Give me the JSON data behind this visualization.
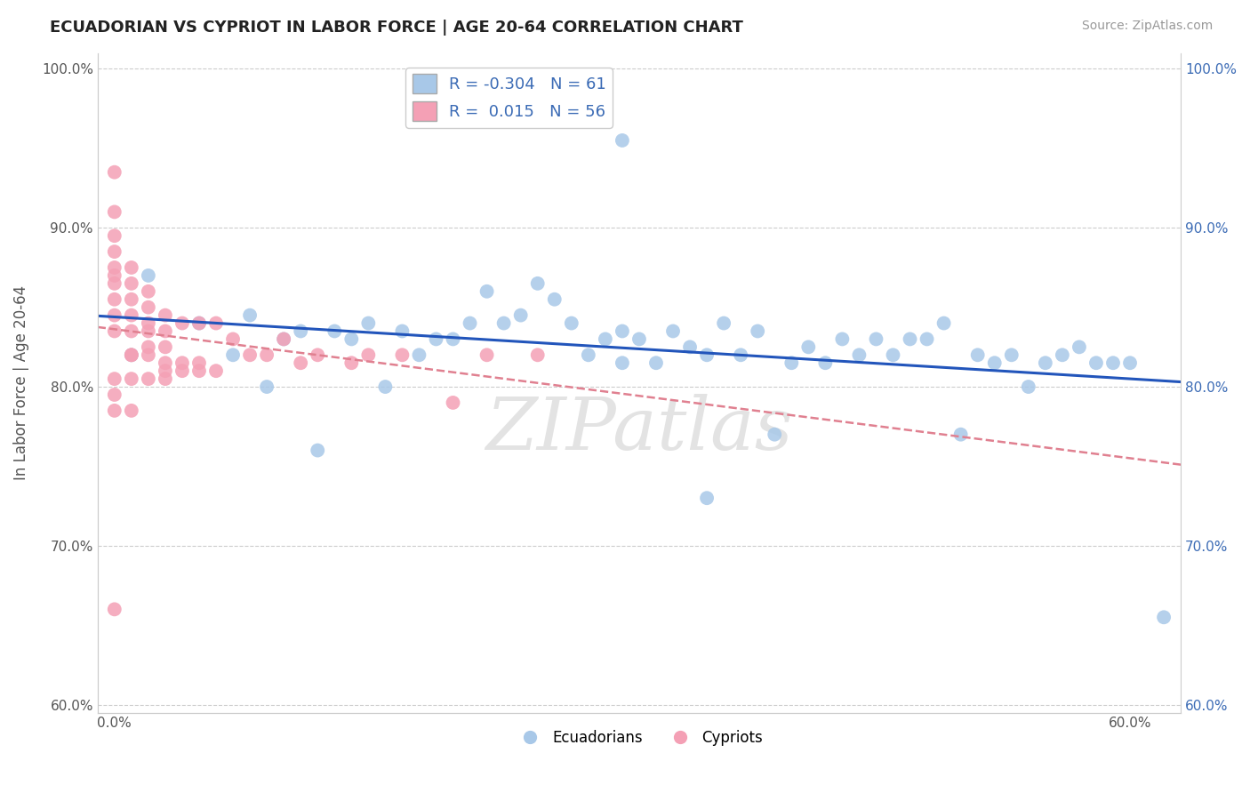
{
  "title": "ECUADORIAN VS CYPRIOT IN LABOR FORCE | AGE 20-64 CORRELATION CHART",
  "source": "Source: ZipAtlas.com",
  "ylabel": "In Labor Force | Age 20-64",
  "xlim": [
    -0.01,
    0.63
  ],
  "ylim": [
    0.595,
    1.01
  ],
  "xticks": [
    0.0,
    0.1,
    0.2,
    0.3,
    0.4,
    0.5,
    0.6
  ],
  "xticklabels": [
    "0.0%",
    "",
    "",
    "",
    "",
    "",
    "60.0%"
  ],
  "yticks": [
    0.6,
    0.7,
    0.8,
    0.9,
    1.0
  ],
  "yticklabels_left": [
    "60.0%",
    "70.0%",
    "80.0%",
    "90.0%",
    "100.0%"
  ],
  "yticklabels_right": [
    "60.0%",
    "70.0%",
    "80.0%",
    "90.0%",
    "100.0%"
  ],
  "R_blue": -0.304,
  "N_blue": 61,
  "R_pink": 0.015,
  "N_pink": 56,
  "blue_color": "#a8c8e8",
  "pink_color": "#f4a0b5",
  "blue_line_color": "#2255bb",
  "pink_line_color": "#e08090",
  "background_color": "#ffffff",
  "grid_color": "#cccccc",
  "watermark": "ZIPatlas",
  "blue_scatter_x": [
    0.02,
    0.12,
    0.15,
    0.17,
    0.19,
    0.2,
    0.22,
    0.23,
    0.24,
    0.25,
    0.26,
    0.27,
    0.28,
    0.29,
    0.3,
    0.3,
    0.31,
    0.32,
    0.33,
    0.34,
    0.35,
    0.36,
    0.37,
    0.38,
    0.39,
    0.4,
    0.42,
    0.43,
    0.44,
    0.45,
    0.46,
    0.47,
    0.48,
    0.49,
    0.5,
    0.51,
    0.52,
    0.53,
    0.54,
    0.55,
    0.56,
    0.57,
    0.58,
    0.59,
    0.6,
    0.01,
    0.05,
    0.07,
    0.08,
    0.09,
    0.1,
    0.11,
    0.13,
    0.14,
    0.16,
    0.18,
    0.21,
    0.35,
    0.41,
    0.62,
    0.3
  ],
  "blue_scatter_y": [
    0.87,
    0.76,
    0.84,
    0.835,
    0.83,
    0.83,
    0.86,
    0.84,
    0.845,
    0.865,
    0.855,
    0.84,
    0.82,
    0.83,
    0.835,
    0.815,
    0.83,
    0.815,
    0.835,
    0.825,
    0.82,
    0.84,
    0.82,
    0.835,
    0.77,
    0.815,
    0.815,
    0.83,
    0.82,
    0.83,
    0.82,
    0.83,
    0.83,
    0.84,
    0.77,
    0.82,
    0.815,
    0.82,
    0.8,
    0.815,
    0.82,
    0.825,
    0.815,
    0.815,
    0.815,
    0.82,
    0.84,
    0.82,
    0.845,
    0.8,
    0.83,
    0.835,
    0.835,
    0.83,
    0.8,
    0.82,
    0.84,
    0.73,
    0.825,
    0.655,
    0.955
  ],
  "pink_scatter_x": [
    0.0,
    0.0,
    0.0,
    0.0,
    0.0,
    0.0,
    0.0,
    0.0,
    0.0,
    0.0,
    0.01,
    0.01,
    0.01,
    0.01,
    0.01,
    0.01,
    0.02,
    0.02,
    0.02,
    0.02,
    0.02,
    0.03,
    0.03,
    0.03,
    0.03,
    0.04,
    0.04,
    0.05,
    0.05,
    0.06,
    0.06,
    0.07,
    0.08,
    0.09,
    0.1,
    0.11,
    0.12,
    0.14,
    0.15,
    0.17,
    0.2,
    0.22,
    0.25,
    0.01,
    0.02,
    0.03,
    0.04,
    0.05,
    0.0,
    0.0,
    0.01,
    0.02,
    0.03,
    0.0,
    0.01,
    0.0
  ],
  "pink_scatter_y": [
    0.935,
    0.91,
    0.895,
    0.885,
    0.875,
    0.87,
    0.865,
    0.855,
    0.845,
    0.835,
    0.875,
    0.865,
    0.855,
    0.845,
    0.835,
    0.82,
    0.86,
    0.85,
    0.84,
    0.835,
    0.82,
    0.845,
    0.835,
    0.825,
    0.81,
    0.84,
    0.81,
    0.84,
    0.81,
    0.84,
    0.81,
    0.83,
    0.82,
    0.82,
    0.83,
    0.815,
    0.82,
    0.815,
    0.82,
    0.82,
    0.79,
    0.82,
    0.82,
    0.82,
    0.825,
    0.815,
    0.815,
    0.815,
    0.805,
    0.795,
    0.805,
    0.805,
    0.805,
    0.785,
    0.785,
    0.66
  ]
}
